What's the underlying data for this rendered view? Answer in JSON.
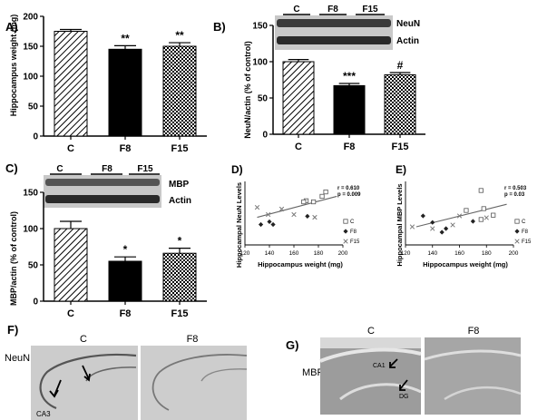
{
  "colors": {
    "axis": "#000000",
    "bar_f8": "#000000",
    "hatch": "#000000",
    "blot_bg": "#c8c8c8",
    "blot_band": "#2a2a2a",
    "micro_bg": "#c9c9c9",
    "micro_dark": "#555555",
    "fit_line": "#666666"
  },
  "chart_data": [
    {
      "panel": "A)",
      "type": "bar",
      "ylabel": "Hippocampus weight (mg)",
      "categories": [
        "C",
        "F8",
        "F15"
      ],
      "values": [
        175,
        145,
        150
      ],
      "errors": [
        3,
        6,
        6
      ],
      "fills": [
        "diagonal-hatch",
        "solid-black",
        "checker"
      ],
      "yticks": [
        "0",
        "50",
        "100",
        "150",
        "200"
      ],
      "ylim": [
        0,
        200
      ],
      "significance": [
        "",
        "**",
        "**"
      ]
    },
    {
      "panel": "B)",
      "type": "bar",
      "ylabel": "NeuN/actin (% of control)",
      "categories": [
        "C",
        "F8",
        "F15"
      ],
      "values": [
        100,
        67,
        82
      ],
      "errors": [
        3,
        3,
        3
      ],
      "fills": [
        "diagonal-hatch",
        "solid-black",
        "checker"
      ],
      "yticks": [
        "0",
        "50",
        "100",
        "150"
      ],
      "ylim": [
        0,
        150
      ],
      "significance": [
        "",
        "***",
        "#"
      ],
      "blot": {
        "groups": [
          "C",
          "F8",
          "F15"
        ],
        "bands": [
          "NeuN",
          "Actin"
        ]
      }
    },
    {
      "panel": "C)",
      "type": "bar",
      "ylabel": "MBP/actin (% of control)",
      "categories": [
        "C",
        "F8",
        "F15"
      ],
      "values": [
        100,
        55,
        66
      ],
      "errors": [
        10,
        6,
        7
      ],
      "fills": [
        "diagonal-hatch",
        "solid-black",
        "checker"
      ],
      "yticks": [
        "0",
        "50",
        "100",
        "150"
      ],
      "ylim": [
        0,
        150
      ],
      "significance": [
        "",
        "*",
        "*"
      ],
      "blot": {
        "groups": [
          "C",
          "F8",
          "F15"
        ],
        "bands": [
          "MBP",
          "Actin"
        ]
      }
    },
    {
      "panel": "D)",
      "type": "scatter",
      "ylabel": "Hippocampal NeuN Levels",
      "xlabel": "Hippocampus weight (mg)",
      "xticks": [
        "120",
        "140",
        "160",
        "180",
        "200"
      ],
      "xlim": [
        120,
        200
      ],
      "stats": [
        "r = 0.610",
        "p = 0.009"
      ],
      "legend": [
        "C",
        "F8",
        "F15"
      ],
      "series": [
        {
          "name": "C",
          "marker": "open-square",
          "points": [
            [
              170,
              100
            ],
            [
              176,
              98
            ],
            [
              183,
              108
            ],
            [
              168,
              98
            ],
            [
              186,
              116
            ]
          ]
        },
        {
          "name": "F8",
          "marker": "filled-diamond",
          "points": [
            [
              133,
              57
            ],
            [
              140,
              62
            ],
            [
              143,
              57
            ],
            [
              171,
              72
            ]
          ]
        },
        {
          "name": "F15",
          "marker": "x",
          "points": [
            [
              130,
              88
            ],
            [
              139,
              75
            ],
            [
              150,
              85
            ],
            [
              160,
              75
            ],
            [
              177,
              70
            ]
          ]
        }
      ],
      "fit": [
        [
          130,
          70
        ],
        [
          195,
          108
        ]
      ]
    },
    {
      "panel": "E)",
      "type": "scatter",
      "ylabel": "Hippocampal MBP Levels",
      "xlabel": "Hippocampus weight (mg)",
      "xticks": [
        "120",
        "140",
        "160",
        "180",
        "200"
      ],
      "xlim": [
        120,
        200
      ],
      "stats": [
        "r = 0.503",
        "p = 0.03"
      ],
      "legend": [
        "C",
        "F8",
        "F15"
      ],
      "series": [
        {
          "name": "C",
          "marker": "open-square",
          "points": [
            [
              165,
              95
            ],
            [
              176,
              150
            ],
            [
              178,
              100
            ],
            [
              185,
              82
            ],
            [
              176,
              70
            ]
          ]
        },
        {
          "name": "F8",
          "marker": "filled-diamond",
          "points": [
            [
              133,
              80
            ],
            [
              140,
              62
            ],
            [
              147,
              35
            ],
            [
              150,
              45
            ],
            [
              170,
              65
            ]
          ]
        },
        {
          "name": "F15",
          "marker": "x",
          "points": [
            [
              125,
              50
            ],
            [
              140,
              45
            ],
            [
              155,
              55
            ],
            [
              160,
              80
            ],
            [
              180,
              75
            ]
          ]
        }
      ],
      "fit": [
        [
          128,
          50
        ],
        [
          195,
          112
        ]
      ]
    }
  ],
  "micrographs": {
    "F": {
      "panel": "F)",
      "stain": "NeuN",
      "groups": [
        "C",
        "F8"
      ],
      "annotations": [
        "CA3"
      ]
    },
    "G": {
      "panel": "G)",
      "stain": "MBP",
      "groups": [
        "C",
        "F8"
      ],
      "annotations": [
        "CA1",
        "DG"
      ]
    }
  }
}
